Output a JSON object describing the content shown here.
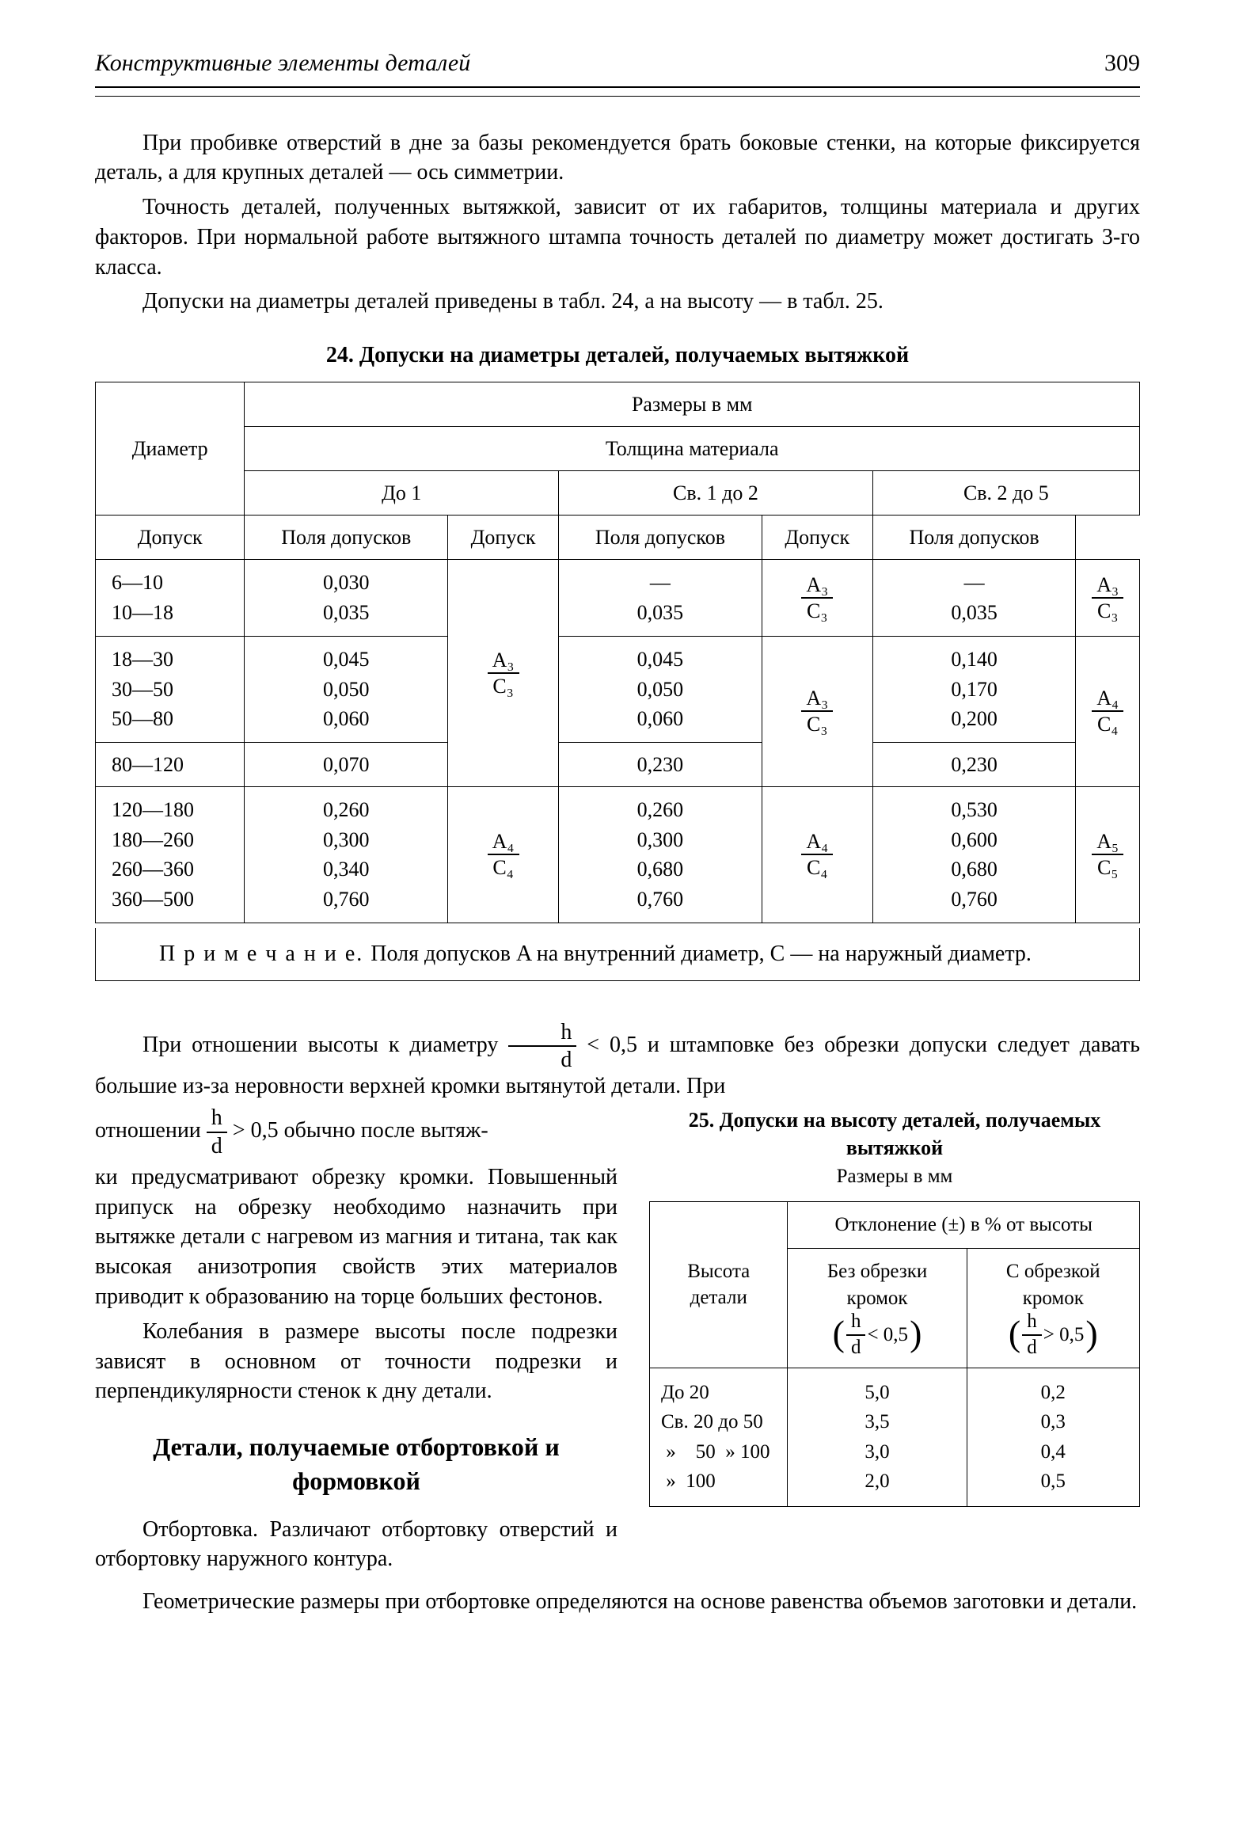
{
  "header": {
    "running_title": "Конструктивные элементы деталей",
    "page_number": "309"
  },
  "para": {
    "p1": "При пробивке отверстий в дне за базы рекомендуется брать боковые стенки, на которые фиксируется деталь, а для крупных деталей — ось симметрии.",
    "p2": "Точность деталей, полученных вытяжкой, зависит от их габаритов, толщины материала и других факторов. При нормальной работе вытяжного штампа точность деталей по диаметру может достигать 3-го класса.",
    "p3": "Допуски на диаметры деталей приведены в табл. 24, а на высоту — в табл. 25.",
    "p4a": "При отношении высоты к диаметру ",
    "p4b": " < 0,5 и штамповке без обрезки допуски следует давать большие из-за неровности верхней кромки вытянутой детали. При",
    "p5a": "отношении ",
    "p5b": " > 0,5 обычно после вытяж-",
    "p6": "ки предусматривают обрезку кромки. Повышенный припуск на обрезку необходимо назначить при вытяжке детали с нагревом из магния и титана, так как высокая анизотропия свойств этих материалов приводит к образованию на торце больших фестонов.",
    "p7": "Колебания в размере высоты после подрезки зависят в основном от точности подрезки и перпендикулярности стенок к дну детали.",
    "h2": "Детали, получаемые отбортовкой и формовкой",
    "p8": "Отбортовка. Различают отбортовку отверстий и отбортовку наружного контура.",
    "p9": "Геометрические размеры при отбортовке определяются на основе равенства объемов заготовки и детали."
  },
  "table24": {
    "caption": "24. Допуски на диаметры деталей, получаемых вытяжкой",
    "head": {
      "razmery": "Размеры в мм",
      "diameter": "Диаметр",
      "thickness": "Толщина материала",
      "c1": "До 1",
      "c2": "Св. 1 до 2",
      "c3": "Св. 2 до 5",
      "dopusk": "Допуск",
      "polya": "Поля допусков"
    },
    "rows": {
      "g1_dia": "6—10\n10—18",
      "g1_d1": "0,030\n0,035",
      "g1_d2": "—\n0,035",
      "g1_d3": "—\n0,035",
      "g2_dia": "18—30\n30—50\n50—80",
      "g2_d1": "0,045\n0,050\n0,060",
      "g2_d2": "0,045\n0,050\n0,060",
      "g2_d3": "0,140\n0,170\n0,200",
      "g3_dia": "80—120",
      "g3_d1": "0,070",
      "g3_d2": "0,230",
      "g3_d3": "0,230",
      "g4_dia": "120—180\n180—260\n260—360\n360—500",
      "g4_d1": "0,260\n0,300\n0,340\n0,760",
      "g4_d2": "0,260\n0,300\n0,680\n0,760",
      "g4_d3": "0,530\n0,600\n0,680\n0,760"
    },
    "fields": {
      "a3c3_num": "A₃",
      "a3c3_den": "C₃",
      "a4c4_num": "A₄",
      "a4c4_den": "C₄",
      "a5c5_num": "A₅",
      "a5c5_den": "C₅"
    },
    "note_label": "П р и м е ч а н и е. ",
    "note_text": "Поля допусков A на внутренний диаметр, C — на наружный диаметр."
  },
  "table25": {
    "caption": "25. Допуски на высоту деталей, получаемых вытяжкой",
    "subcaption": "Размеры в мм",
    "head": {
      "vysota": "Высота детали",
      "otkl": "Отклонение (±) в % от высоты",
      "bez": "Без обрез­ки кромок",
      "s": "С обрезкой кромок"
    },
    "cond": {
      "hd_num": "h",
      "hd_den": "d",
      "lt": " < 0,5",
      "gt": " > 0,5"
    },
    "rows": {
      "labels": "До 20\nСв. 20 до 50\n »    50  » 100\n »  100",
      "col1": "5,0\n3,5\n3,0\n2,0",
      "col2": "0,2\n0,3\n0,4\n0,5"
    }
  },
  "inline_frac": {
    "h": "h",
    "d": "d"
  }
}
